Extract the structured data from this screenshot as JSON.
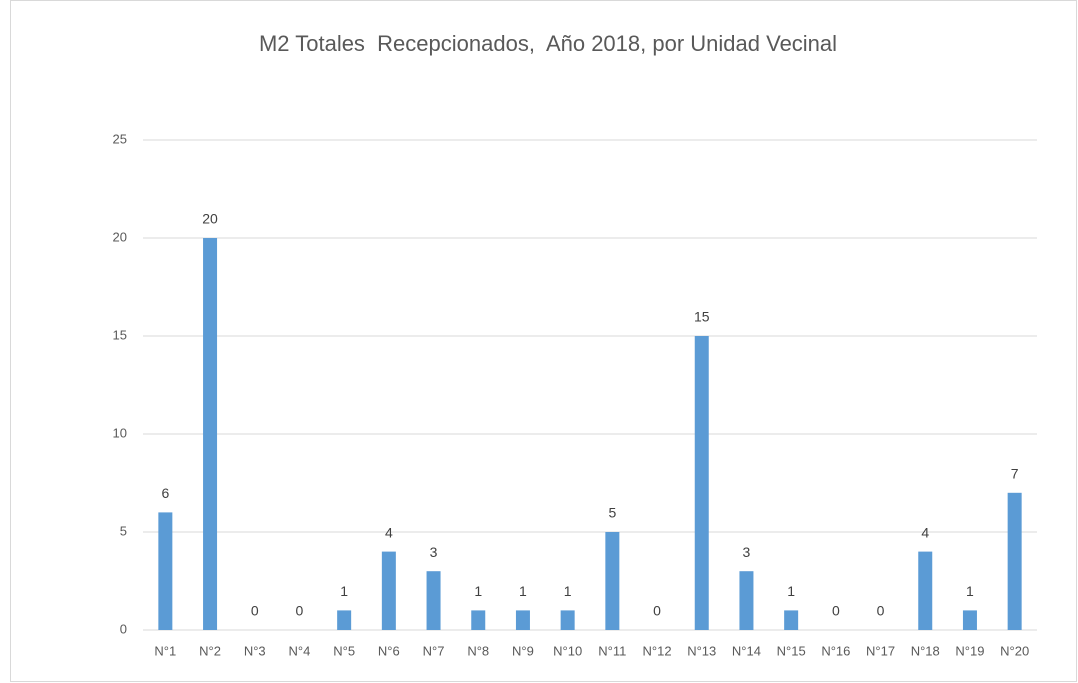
{
  "chart_data": {
    "type": "bar",
    "title": "M2 Totales  Recepcionados,  Año 2018, por Unidad Vecinal",
    "categories": [
      "N°1",
      "N°2",
      "N°3",
      "N°4",
      "N°5",
      "N°6",
      "N°7",
      "N°8",
      "N°9",
      "N°10",
      "N°11",
      "N°12",
      "N°13",
      "N°14",
      "N°15",
      "N°16",
      "N°17",
      "N°18",
      "N°19",
      "N°20"
    ],
    "values": [
      6,
      20,
      0,
      0,
      1,
      4,
      3,
      1,
      1,
      1,
      5,
      0,
      15,
      3,
      1,
      0,
      0,
      4,
      1,
      7
    ],
    "color": "#5b9bd5",
    "ylim": [
      0,
      25
    ],
    "yticks": [
      0,
      5,
      10,
      15,
      20,
      25
    ],
    "grid": true
  }
}
